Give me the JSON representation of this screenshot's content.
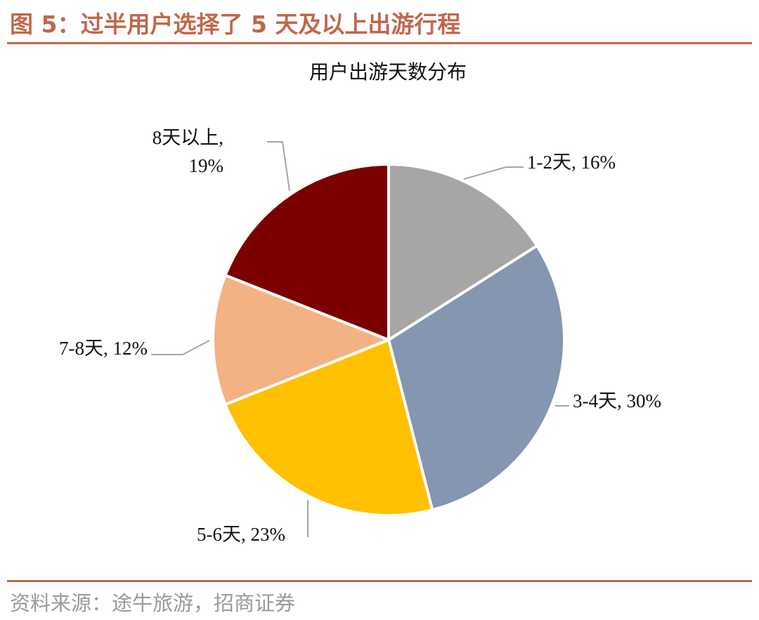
{
  "figure": {
    "title": "图 5：过半用户选择了 5 天及以上出游行程",
    "source": "资料来源：途牛旅游，招商证券"
  },
  "chart_data": {
    "type": "pie",
    "title": "用户出游天数分布",
    "start_angle_deg": 0,
    "direction": "clockwise",
    "slices": [
      {
        "name": "1-2天",
        "value": 16,
        "color": "#a6a6a6",
        "label_lines": [
          "1-2天, 16%"
        ]
      },
      {
        "name": "3-4天",
        "value": 30,
        "color": "#8496b0",
        "label_lines": [
          "3-4天, 30%"
        ]
      },
      {
        "name": "5-6天",
        "value": 23,
        "color": "#ffc000",
        "label_lines": [
          "5-6天, 23%"
        ]
      },
      {
        "name": "7-8天",
        "value": 12,
        "color": "#f4b183",
        "label_lines": [
          "7-8天, 12%"
        ]
      },
      {
        "name": "8天以上",
        "value": 19,
        "color": "#7b0000",
        "label_lines": [
          "8天以上,",
          "19%"
        ]
      }
    ]
  }
}
